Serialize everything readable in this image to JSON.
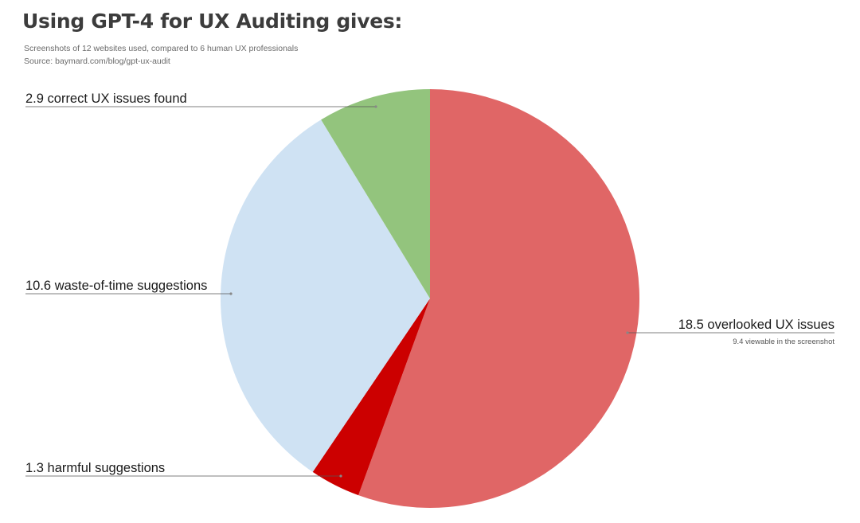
{
  "chart_data": {
    "type": "pie",
    "title": "Using GPT-4 for UX Auditing gives:",
    "subtitle": "Screenshots of 12 websites used, compared to 6 human UX professionals",
    "source": "Source: baymard.com/blog/gpt-ux-audit",
    "slices": [
      {
        "label": "18.5 overlooked UX issues",
        "value": 18.5,
        "color": "#e06666",
        "note": "9.4 viewable in the screenshot"
      },
      {
        "label": "1.3 harmful suggestions",
        "value": 1.3,
        "color": "#cc0000"
      },
      {
        "label": "10.6 waste-of-time suggestions",
        "value": 10.6,
        "color": "#cfe2f3"
      },
      {
        "label": "2.9 correct UX issues found",
        "value": 2.9,
        "color": "#93c47d"
      }
    ],
    "start_angle": "12 o'clock",
    "direction": "clockwise",
    "legend": "none"
  }
}
